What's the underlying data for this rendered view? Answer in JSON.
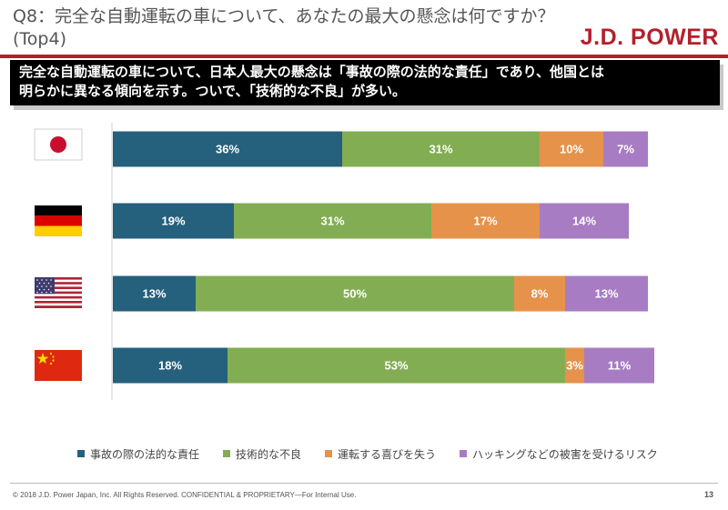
{
  "header": {
    "title": "Q8：完全な自動運転の車について、あなたの最大の懸念は何ですか？ (Top4)",
    "logo": "J.D. POWER"
  },
  "banner": {
    "line1": "完全な自動運転の車について、日本人最大の懸念は「事故の際の法的な責任」であり、他国とは",
    "line2": "明らかに異なる傾向を示す。ついで、「技術的な不良」が多い。"
  },
  "colors": {
    "series": [
      "#25607c",
      "#83ad52",
      "#e6924a",
      "#a77cc3"
    ],
    "brand": "#b3202b"
  },
  "chart_data": {
    "type": "bar",
    "orientation": "horizontal",
    "stacked": true,
    "categories": [
      "Japan",
      "Germany",
      "USA",
      "China"
    ],
    "category_icons": [
      "japan-flag-icon",
      "germany-flag-icon",
      "usa-flag-icon",
      "china-flag-icon"
    ],
    "series": [
      {
        "name": "事故の際の法的な責任",
        "values": [
          36,
          19,
          13,
          18
        ]
      },
      {
        "name": "技術的な不良",
        "values": [
          31,
          31,
          50,
          53
        ]
      },
      {
        "name": "運転する喜びを失う",
        "values": [
          10,
          17,
          8,
          3
        ]
      },
      {
        "name": "ハッキングなどの被害を受けるリスク",
        "values": [
          7,
          14,
          13,
          11
        ]
      }
    ],
    "value_suffix": "%",
    "xlim": [
      0,
      100
    ],
    "legend_position": "bottom"
  },
  "footer": {
    "copyright": "© 2018 J.D. Power Japan, Inc. All Rights Reserved. CONFIDENTIAL & PROPRIETARY—For Internal Use.",
    "page_number": "13"
  }
}
